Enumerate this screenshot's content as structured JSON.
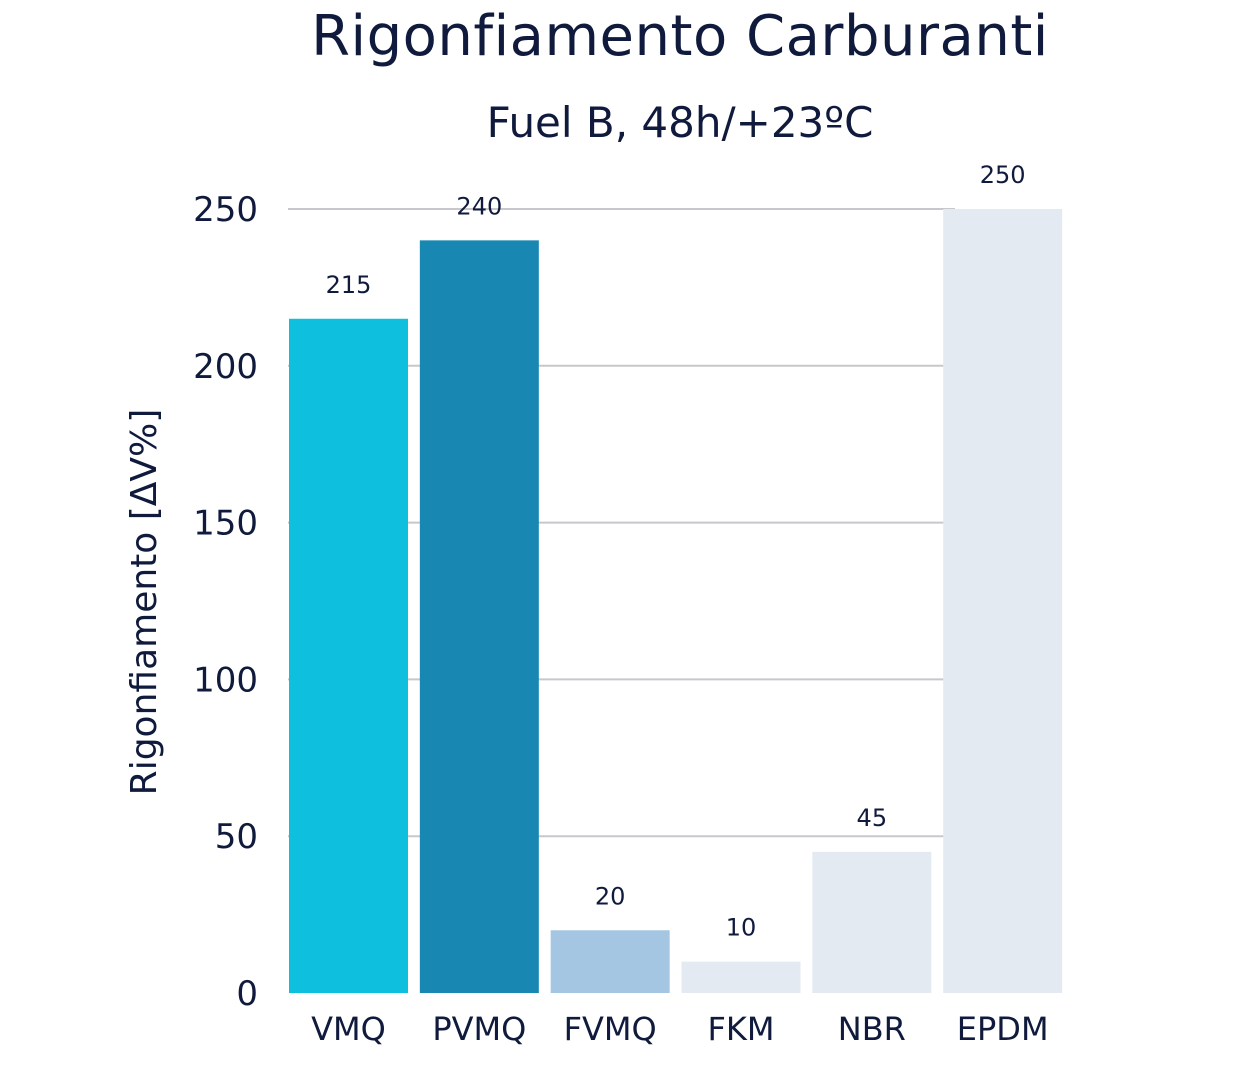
{
  "chart_data": {
    "type": "bar",
    "title": "Rigonfiamento Carburanti",
    "subtitle": "Fuel B, 48h/+23ºC",
    "xlabel": "",
    "ylabel": "Rigonfiamento [ΔV%]",
    "ylim": [
      0,
      250
    ],
    "yticks": [
      0,
      50,
      100,
      150,
      200,
      250
    ],
    "categories": [
      "VMQ",
      "PVMQ",
      "FVMQ",
      "FKM",
      "NBR",
      "EPDM"
    ],
    "values": [
      215,
      240,
      20,
      10,
      45,
      250
    ],
    "colors": [
      "#0fc0de",
      "#1888b3",
      "#a5c6e2",
      "#e3eaf2",
      "#e3eaf2",
      "#e3eaf2"
    ],
    "grid": true,
    "gridlines_color": "#c8c8cc",
    "data_labels": true
  }
}
